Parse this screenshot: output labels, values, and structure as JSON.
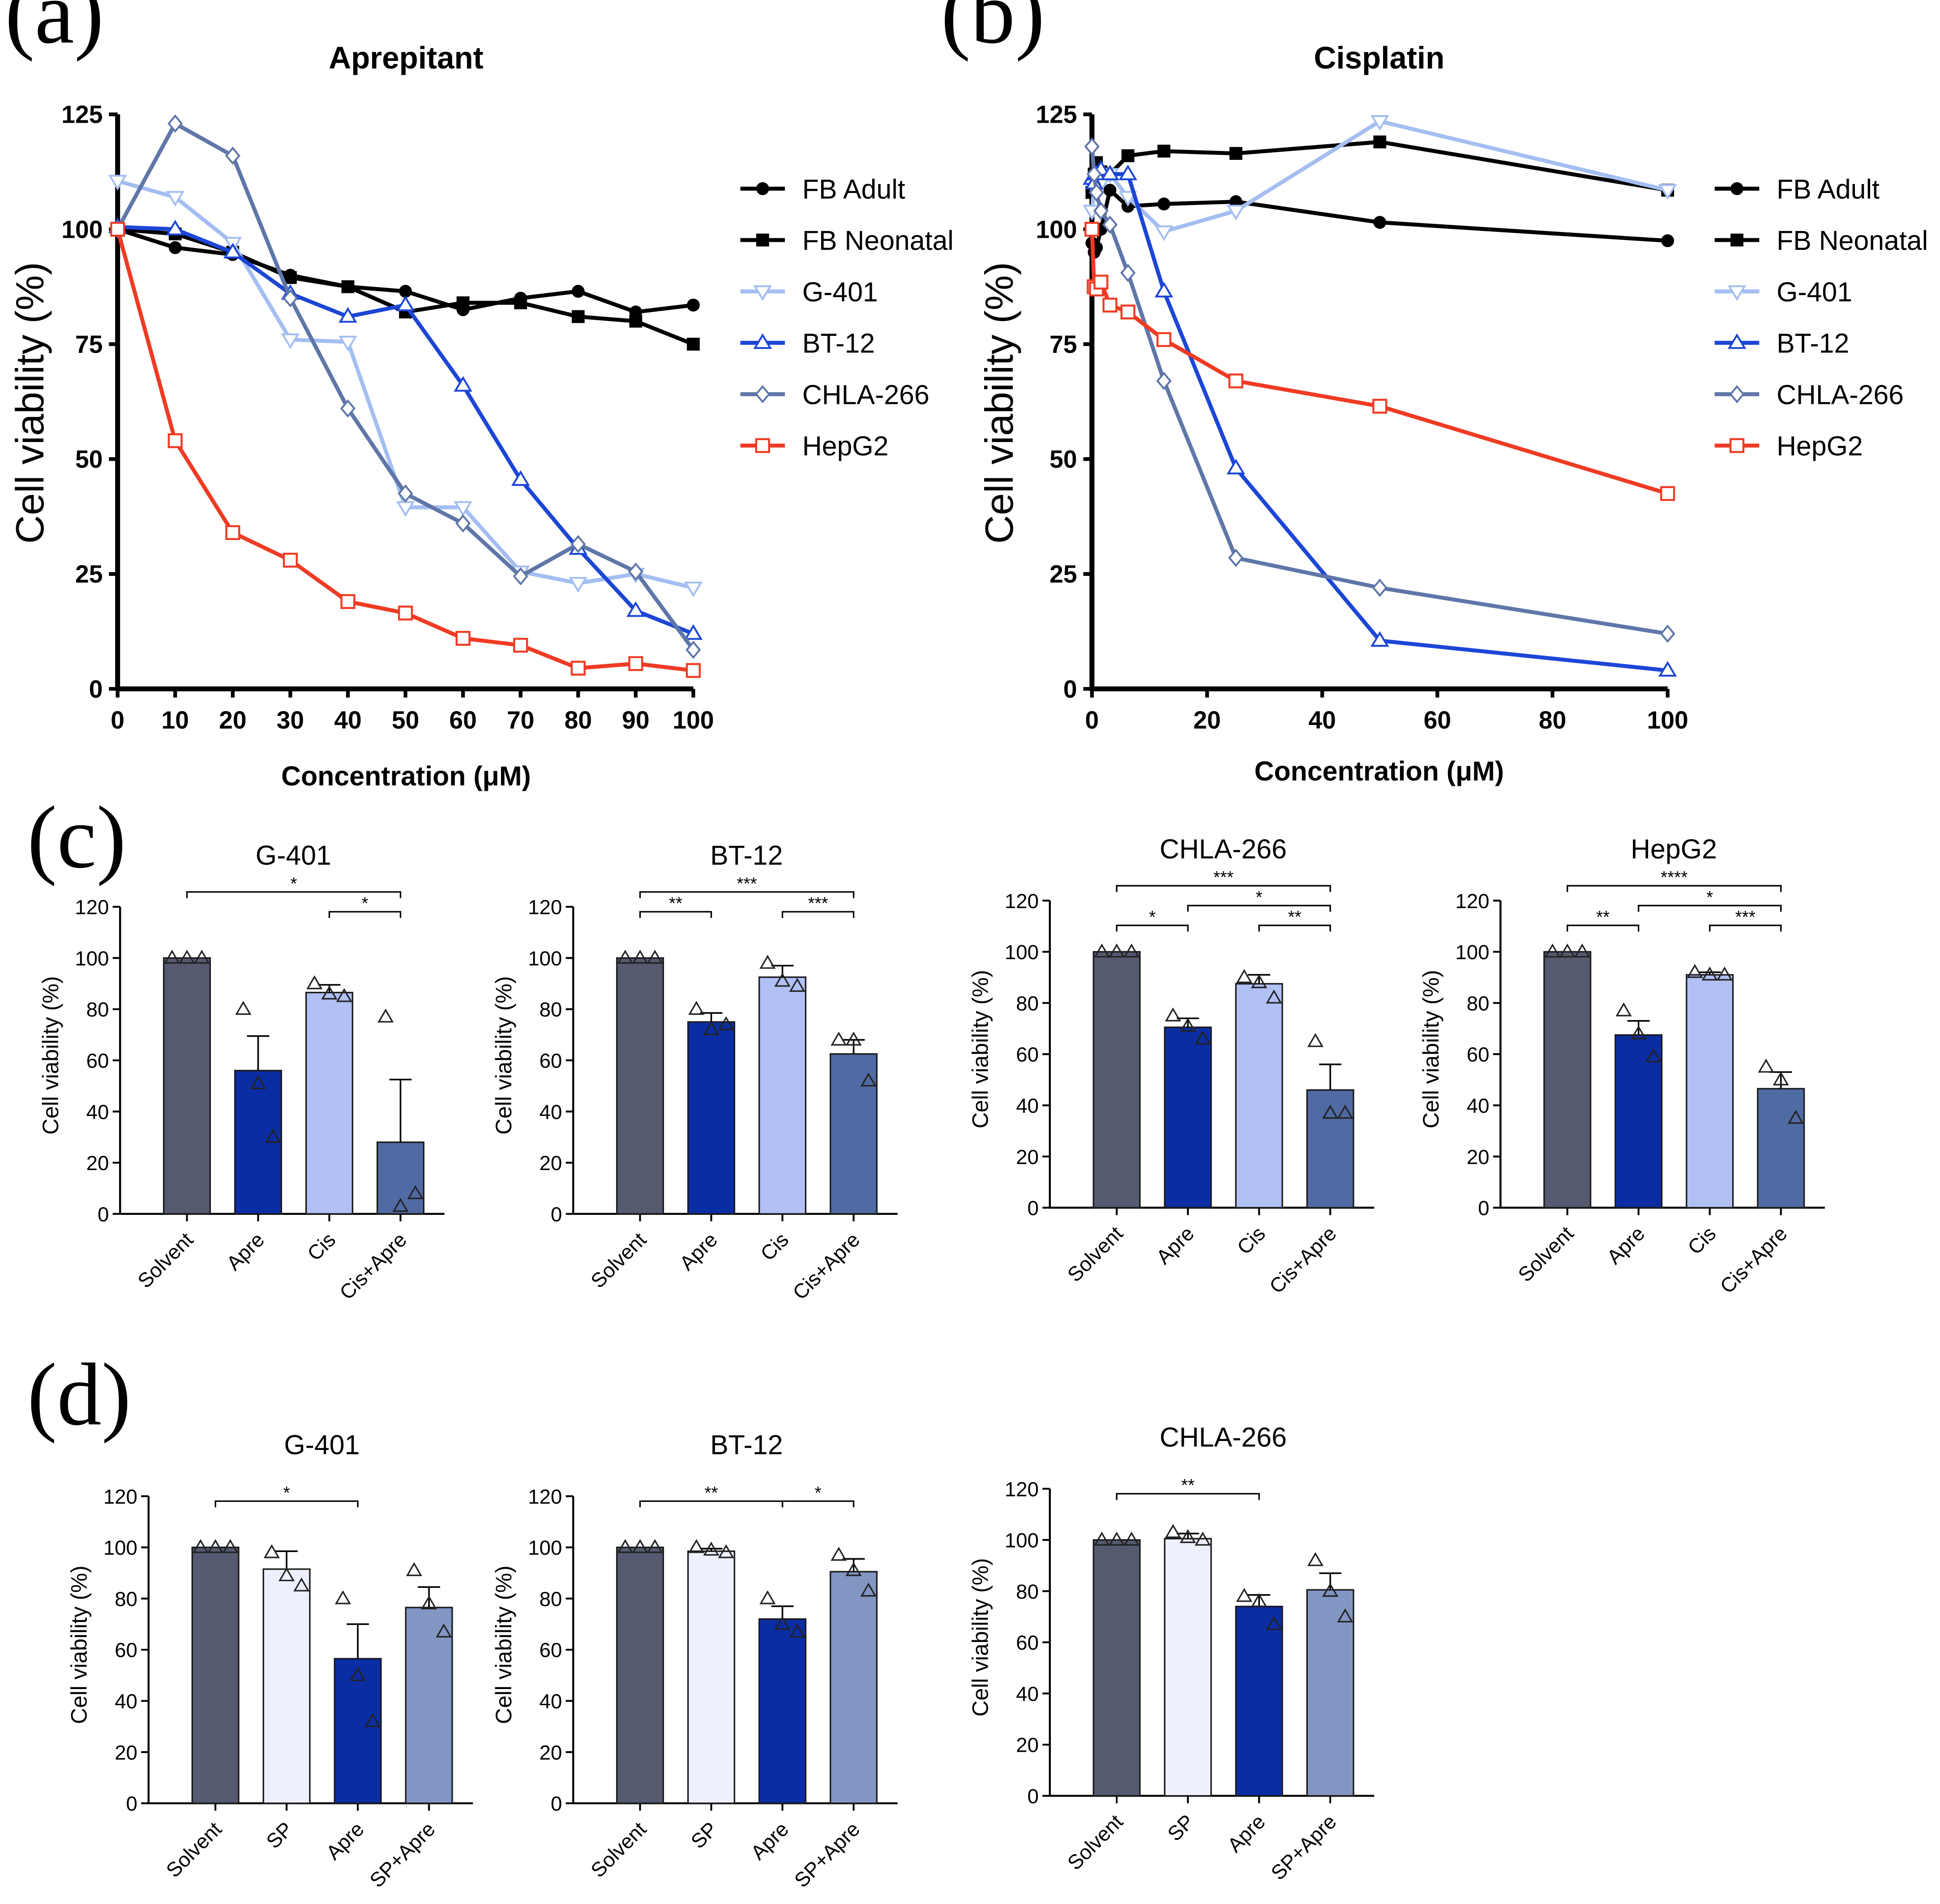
{
  "panel_letters": [
    "(a)",
    "(b)",
    "(c)",
    "(d)"
  ],
  "colors": {
    "fb_adult": "#000000",
    "fb_neonatal": "#000000",
    "g401": "#a4bef1",
    "bt12": "#1c46d6",
    "chla266": "#5f76a8",
    "hepg2": "#ef3b24",
    "bar_solvent": "#555a70",
    "bar_apre": "#0b2da3",
    "bar_cis": "#b1c0f5",
    "bar_cisapre": "#506aa3",
    "bar_sp": "#eef1fd",
    "bar_spapre": "#8296c4"
  },
  "chart_data": [
    {
      "id": "a",
      "type": "line",
      "title": "Aprepitant",
      "xlabel": "Concentration (μM)",
      "ylabel": "Cell viability (%)",
      "xlim": [
        0,
        100
      ],
      "ylim": [
        0,
        125
      ],
      "xticks": [
        "0",
        "10",
        "20",
        "30",
        "40",
        "50",
        "60",
        "70",
        "80",
        "90",
        "100"
      ],
      "yticks": [
        "0",
        "25",
        "50",
        "75",
        "100",
        "125"
      ],
      "series": [
        {
          "name": "FB Adult",
          "marker": "circle",
          "x": [
            0,
            10,
            20,
            30,
            40,
            50,
            60,
            70,
            80,
            90,
            100
          ],
          "values": [
            100,
            96,
            94.5,
            90,
            87.5,
            86.5,
            82.5,
            85,
            86.5,
            82,
            83.5
          ]
        },
        {
          "name": "FB Neonatal",
          "marker": "square",
          "x": [
            0,
            10,
            20,
            30,
            40,
            50,
            60,
            70,
            80,
            90,
            100
          ],
          "values": [
            100,
            99,
            95,
            89.5,
            87.5,
            82,
            84,
            84,
            81,
            80,
            75
          ]
        },
        {
          "name": "G-401",
          "marker": "triangle-down",
          "x": [
            0,
            10,
            20,
            30,
            40,
            50,
            60,
            70,
            80,
            90,
            100
          ],
          "values": [
            110.5,
            107,
            97,
            76,
            75.5,
            39.5,
            39.5,
            25.5,
            23,
            25,
            22
          ]
        },
        {
          "name": "BT-12",
          "marker": "triangle-up",
          "x": [
            0,
            10,
            20,
            30,
            40,
            50,
            60,
            70,
            80,
            90,
            100
          ],
          "values": [
            100.5,
            100,
            95,
            86,
            81,
            83.5,
            66,
            45.5,
            30.5,
            17,
            12
          ]
        },
        {
          "name": "CHLA-266",
          "marker": "diamond",
          "x": [
            0,
            10,
            20,
            30,
            40,
            50,
            60,
            70,
            80,
            90,
            100
          ],
          "values": [
            100,
            123,
            116,
            85,
            61,
            42.5,
            36,
            24.5,
            31.5,
            25.5,
            8.5
          ]
        },
        {
          "name": "HepG2",
          "marker": "square-open",
          "x": [
            0,
            10,
            20,
            30,
            40,
            50,
            60,
            70,
            80,
            90,
            100
          ],
          "values": [
            100,
            54,
            34,
            28,
            19,
            16.5,
            11,
            9.5,
            4.5,
            5.5,
            4
          ]
        }
      ]
    },
    {
      "id": "b",
      "type": "line",
      "title": "Cisplatin",
      "xlabel": "Concentration (μM)",
      "ylabel": "Cell viability (%)",
      "xlim": [
        0,
        100
      ],
      "ylim": [
        0,
        125
      ],
      "xticks": [
        "0",
        "20",
        "40",
        "60",
        "80",
        "100"
      ],
      "yticks": [
        "0",
        "25",
        "50",
        "75",
        "100",
        "125"
      ],
      "series": [
        {
          "name": "FB Adult",
          "marker": "circle",
          "x": [
            0,
            0.39,
            0.78,
            1.56,
            3.125,
            6.25,
            12.5,
            25,
            50,
            100
          ],
          "values": [
            97,
            95,
            96,
            100,
            108.5,
            105,
            105.5,
            106,
            101.5,
            97.5
          ]
        },
        {
          "name": "FB Neonatal",
          "marker": "square",
          "x": [
            0,
            0.39,
            0.78,
            1.56,
            3.125,
            6.25,
            12.5,
            25,
            50,
            100
          ],
          "values": [
            108,
            112,
            114.5,
            112.5,
            112,
            116,
            117,
            116.5,
            119,
            108.5
          ]
        },
        {
          "name": "G-401",
          "marker": "triangle-down",
          "x": [
            0,
            0.39,
            0.78,
            1.56,
            3.125,
            6.25,
            12.5,
            25,
            50,
            100
          ],
          "values": [
            104,
            109,
            111,
            110,
            112,
            107,
            99.5,
            104,
            123.5,
            108.5
          ]
        },
        {
          "name": "BT-12",
          "marker": "triangle-up",
          "x": [
            0,
            0.39,
            0.78,
            1.56,
            3.125,
            6.25,
            12.5,
            25,
            50,
            100
          ],
          "values": [
            111,
            110,
            112,
            113,
            112,
            112,
            86.5,
            48,
            10.5,
            4
          ]
        },
        {
          "name": "CHLA-266",
          "marker": "diamond",
          "x": [
            0,
            0.39,
            0.78,
            1.56,
            3.125,
            6.25,
            12.5,
            25,
            50,
            100
          ],
          "values": [
            118,
            112,
            108,
            104,
            101,
            90.5,
            67,
            28.5,
            22,
            12
          ]
        },
        {
          "name": "HepG2",
          "marker": "square-open",
          "x": [
            0,
            0.39,
            0.78,
            1.56,
            3.125,
            6.25,
            12.5,
            25,
            50,
            100
          ],
          "values": [
            100,
            87.5,
            87,
            88.5,
            83.5,
            82,
            76,
            67,
            61.5,
            42.5
          ]
        }
      ]
    },
    {
      "id": "c1",
      "type": "bar",
      "title": "G-401",
      "ylabel": "Cell viability (%)",
      "ylim": [
        0,
        120
      ],
      "yticks": [
        "0",
        "20",
        "40",
        "60",
        "80",
        "100",
        "120"
      ],
      "categories": [
        "Solvent",
        "Apre",
        "Cis",
        "Cis+Apre"
      ],
      "values": [
        100,
        56,
        86.5,
        28
      ],
      "errors": [
        0,
        13.5,
        3,
        24.5
      ],
      "points": [
        [
          100,
          100,
          100
        ],
        [
          80,
          51,
          30
        ],
        [
          90,
          86,
          85
        ],
        [
          77,
          3,
          8
        ]
      ],
      "significance": [
        {
          "from": 0,
          "to": 3,
          "label": "*"
        },
        {
          "from": 2,
          "to": 3,
          "label": "*"
        }
      ]
    },
    {
      "id": "c2",
      "type": "bar",
      "title": "BT-12",
      "ylabel": "Cell viability (%)",
      "ylim": [
        0,
        120
      ],
      "yticks": [
        "0",
        "20",
        "40",
        "60",
        "80",
        "100",
        "120"
      ],
      "categories": [
        "Solvent",
        "Apre",
        "Cis",
        "Cis+Apre"
      ],
      "values": [
        100,
        75,
        92.5,
        62.5
      ],
      "errors": [
        0,
        3.5,
        4.5,
        5.5
      ],
      "points": [
        [
          100,
          100,
          100
        ],
        [
          80,
          72,
          74
        ],
        [
          98,
          91,
          89
        ],
        [
          68,
          68,
          52
        ]
      ],
      "significance": [
        {
          "from": 0,
          "to": 3,
          "label": "***"
        },
        {
          "from": 0,
          "to": 1,
          "label": "**"
        },
        {
          "from": 2,
          "to": 3,
          "label": "***"
        }
      ]
    },
    {
      "id": "c3",
      "type": "bar",
      "title": "CHLA-266",
      "ylabel": "Cell viability (%)",
      "ylim": [
        0,
        120
      ],
      "yticks": [
        "0",
        "20",
        "40",
        "60",
        "80",
        "100",
        "120"
      ],
      "categories": [
        "Solvent",
        "Apre",
        "Cis",
        "Cis+Apre"
      ],
      "values": [
        100,
        70.5,
        87.5,
        46
      ],
      "errors": [
        0,
        3.5,
        3.5,
        10
      ],
      "points": [
        [
          100,
          100,
          100
        ],
        [
          75,
          71,
          66
        ],
        [
          90,
          88,
          82
        ],
        [
          65,
          37,
          37
        ]
      ],
      "significance": [
        {
          "from": 0,
          "to": 3,
          "label": "***"
        },
        {
          "from": 0,
          "to": 1,
          "label": "*"
        },
        {
          "from": 1,
          "to": 3,
          "label": "*"
        },
        {
          "from": 2,
          "to": 3,
          "label": "**"
        }
      ]
    },
    {
      "id": "c4",
      "type": "bar",
      "title": "HepG2",
      "ylabel": "Cell viability (%)",
      "ylim": [
        0,
        120
      ],
      "yticks": [
        "0",
        "20",
        "40",
        "60",
        "80",
        "100",
        "120"
      ],
      "categories": [
        "Solvent",
        "Apre",
        "Cis",
        "Cis+Apre"
      ],
      "values": [
        100,
        67.5,
        91,
        46.5
      ],
      "errors": [
        0,
        5.5,
        1,
        6.5
      ],
      "points": [
        [
          100,
          100,
          100
        ],
        [
          77,
          68,
          59
        ],
        [
          92,
          91,
          91
        ],
        [
          55,
          50,
          35
        ]
      ],
      "significance": [
        {
          "from": 0,
          "to": 3,
          "label": "****"
        },
        {
          "from": 0,
          "to": 1,
          "label": "**"
        },
        {
          "from": 1,
          "to": 3,
          "label": "*"
        },
        {
          "from": 2,
          "to": 3,
          "label": "***"
        }
      ]
    },
    {
      "id": "d1",
      "type": "bar",
      "title": "G-401",
      "ylabel": "Cell viability (%)",
      "ylim": [
        0,
        120
      ],
      "yticks": [
        "0",
        "20",
        "40",
        "60",
        "80",
        "100",
        "120"
      ],
      "categories": [
        "Solvent",
        "SP",
        "Apre",
        "SP+Apre"
      ],
      "values": [
        100,
        91.5,
        56.5,
        76.5
      ],
      "errors": [
        0,
        7,
        13.5,
        8
      ],
      "points": [
        [
          100,
          100,
          100
        ],
        [
          98,
          89,
          85
        ],
        [
          80,
          50,
          32
        ],
        [
          91,
          78,
          67
        ]
      ],
      "significance": [
        {
          "from": 0,
          "to": 2,
          "label": "*"
        }
      ]
    },
    {
      "id": "d2",
      "type": "bar",
      "title": "BT-12",
      "ylabel": "Cell viability (%)",
      "ylim": [
        0,
        120
      ],
      "yticks": [
        "0",
        "20",
        "40",
        "60",
        "80",
        "100",
        "120"
      ],
      "categories": [
        "Solvent",
        "SP",
        "Apre",
        "SP+Apre"
      ],
      "values": [
        100,
        98.5,
        72,
        90.5
      ],
      "errors": [
        0,
        1,
        5,
        5
      ],
      "points": [
        [
          100,
          100,
          100
        ],
        [
          100,
          99,
          98
        ],
        [
          80,
          70,
          67
        ],
        [
          97,
          91,
          83
        ]
      ],
      "significance": [
        {
          "from": 0,
          "to": 2,
          "label": "**"
        },
        {
          "from": 2,
          "to": 3,
          "label": "*"
        }
      ]
    },
    {
      "id": "d3",
      "type": "bar",
      "title": "CHLA-266",
      "ylabel": "Cell viability (%)",
      "ylim": [
        0,
        120
      ],
      "yticks": [
        "0",
        "20",
        "40",
        "60",
        "80",
        "100",
        "120"
      ],
      "categories": [
        "Solvent",
        "SP",
        "Apre",
        "SP+Apre"
      ],
      "values": [
        100,
        100.5,
        74,
        80.5
      ],
      "errors": [
        0,
        2,
        4.5,
        6.5
      ],
      "points": [
        [
          100,
          100,
          100
        ],
        [
          103,
          101,
          100
        ],
        [
          78,
          76,
          67
        ],
        [
          92,
          80,
          70
        ]
      ],
      "significance": [
        {
          "from": 0,
          "to": 2,
          "label": "**"
        }
      ]
    }
  ]
}
